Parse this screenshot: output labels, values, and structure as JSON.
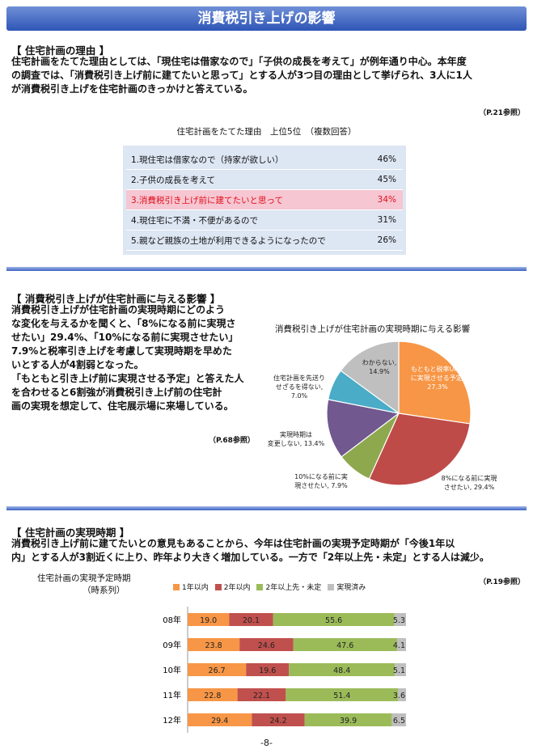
{
  "page_title": "消費税引き上げの影響",
  "section1": {
    "heading": "【 住宅計画の理由 】",
    "lines": [
      "住宅計画をたてた理由としては、「現住宅は借家なので」「子供の成長を考えて」が例年通り中心。本年度",
      "の調査では、「消費税引き上げ前に建てたいと思って」とする人が3つ目の理由として挙げられ、3人に1人",
      "が消費税引き上げを住宅計画のきっかけと答えている。"
    ],
    "ref": "（P.21参照）",
    "table_title": "住宅計画をたてた理由　上位5位　（複数回答）",
    "rows": [
      {
        "label": "1.現住宅は借家なので（持家が欲しい）",
        "value": "46%"
      },
      {
        "label": "2.子供の成長を考えて",
        "value": "45%"
      },
      {
        "label": "3.消費税引き上げ前に建てたいと思って",
        "value": "34%"
      },
      {
        "label": "4.現住宅に不満・不便があるので",
        "value": "31%"
      },
      {
        "label": "5.親など親族の土地が利用できるようになったので",
        "value": "26%"
      }
    ]
  },
  "section2": {
    "heading": "【 消費税引き上げが住宅計画に与える影響 】",
    "lines": [
      "消費税引き上げが住宅計画の実現時期にどのよう",
      "な変化を与えるかを聞くと、「8%になる前に実現さ",
      "せたい」29.4%、「10%になる前に実現させたい」",
      "7.9%と税率引き上げを考慮して実現時期を早めた",
      "いとする人が4割弱となった。",
      "「もともと引き上げ前に実現させる予定」と答えた人",
      "を合わせると6割強が消費税引き上げ前の住宅計",
      "画の実現を想定して、住宅展示場に来場している。"
    ],
    "ref": "（P.68参照）",
    "pie_title": "消費税引き上げが住宅計画の実現時期に与える影響"
  },
  "section3": {
    "heading": "【 住宅計画の実現時期 】",
    "lines": [
      "消費税引き上げ前に建てたいとの意見もあることから、今年は住宅計画の実現予定時期が「今後1年以",
      "内」とする人が3割近くに上り、昨年より大きく増加している。一方で「2年以上先・未定」とする人は減少。"
    ],
    "ref": "（P.19参照）",
    "bar_title_line1": "住宅計画の実現予定時期",
    "bar_title_line2": "（時系列）"
  },
  "page_number": "-8-",
  "chart_data": [
    {
      "type": "pie",
      "title": "消費税引き上げが住宅計画の実現時期に与える影響",
      "slices": [
        {
          "label_lines": [
            "もともと税率UP前",
            "に実現させる予定,",
            "27.3%"
          ],
          "value": 27.3,
          "color": "#f79646"
        },
        {
          "label_lines": [
            "8%になる前に実現",
            "させたい, 29.4%"
          ],
          "value": 29.4,
          "color": "#be4b48"
        },
        {
          "label_lines": [
            "10%になる前に実",
            "現させたい, 7.9%"
          ],
          "value": 7.9,
          "color": "#8ea84e"
        },
        {
          "label_lines": [
            "実現時期は",
            "変更しない, 13.4%"
          ],
          "value": 13.4,
          "color": "#71588f"
        },
        {
          "label_lines": [
            "住宅計画を先送り",
            "せざるを得ない,",
            "7.0%"
          ],
          "value": 7.0,
          "color": "#4aacc6"
        },
        {
          "label_lines": [
            "わからない,",
            "14.9%"
          ],
          "value": 14.9,
          "color": "#bfbfbf"
        }
      ]
    },
    {
      "type": "bar",
      "orientation": "horizontal-stacked-100",
      "categories": [
        "08年",
        "09年",
        "10年",
        "11年",
        "12年"
      ],
      "series": [
        {
          "name": "1年以内",
          "values": [
            19.0,
            23.8,
            26.7,
            22.8,
            29.4
          ],
          "color": "#f79646"
        },
        {
          "name": "2年以内",
          "values": [
            20.1,
            24.6,
            19.6,
            22.1,
            24.2
          ],
          "color": "#c0504d"
        },
        {
          "name": "2年以上先・未定",
          "values": [
            55.6,
            47.6,
            48.4,
            51.4,
            39.9
          ],
          "color": "#9bbb59"
        },
        {
          "name": "実現済み",
          "values": [
            5.3,
            4.1,
            5.1,
            3.6,
            6.5
          ],
          "color": "#bfbfbf"
        }
      ]
    }
  ]
}
